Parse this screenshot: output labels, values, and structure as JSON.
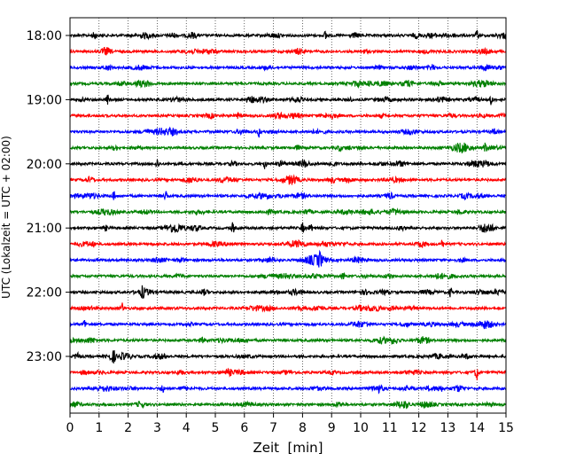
{
  "chart_data": {
    "type": "line",
    "subtype": "helicorder",
    "xlabel": "Zeit  [min]",
    "ylabel": "UTC (Lokalzeit = UTC + 02:00)",
    "xlim": [
      0,
      15
    ],
    "x_ticks": [
      "0",
      "1",
      "2",
      "3",
      "4",
      "5",
      "6",
      "7",
      "8",
      "9",
      "10",
      "11",
      "12",
      "13",
      "14",
      "15"
    ],
    "y_tick_labels": [
      "18:00",
      "19:00",
      "20:00",
      "21:00",
      "22:00",
      "23:00"
    ],
    "trace_interval_min": 15,
    "first_trace_utc": "18:00",
    "trace_count": 24,
    "trace_color_cycle": [
      "#000000",
      "#ff0000",
      "#0000ff",
      "#008000"
    ],
    "vertical_grid": "dotted, every 1 min",
    "notable_spikes": [
      {
        "trace": 0,
        "t_min": 0.85
      },
      {
        "trace": 0,
        "t_min": 8.8
      },
      {
        "trace": 0,
        "t_min": 14.0
      },
      {
        "trace": 3,
        "t_min": 10.3
      },
      {
        "trace": 4,
        "t_min": 1.3
      },
      {
        "trace": 4,
        "t_min": 14.5
      },
      {
        "trace": 6,
        "t_min": 6.5
      },
      {
        "trace": 7,
        "t_min": 14.3
      },
      {
        "trace": 8,
        "t_min": 3.0
      },
      {
        "trace": 8,
        "t_min": 6.7
      },
      {
        "trace": 10,
        "t_min": 1.5
      },
      {
        "trace": 10,
        "t_min": 3.3
      },
      {
        "trace": 12,
        "t_min": 5.6
      },
      {
        "trace": 12,
        "t_min": 8.0
      },
      {
        "trace": 13,
        "t_min": 12.8
      },
      {
        "trace": 14,
        "t_min": 8.6
      },
      {
        "trace": 15,
        "t_min": 9.4
      },
      {
        "trace": 16,
        "t_min": 2.5
      },
      {
        "trace": 16,
        "t_min": 13.1
      },
      {
        "trace": 17,
        "t_min": 1.8
      },
      {
        "trace": 18,
        "t_min": 0.5
      },
      {
        "trace": 20,
        "t_min": 1.5
      },
      {
        "trace": 21,
        "t_min": 14.0
      },
      {
        "trace": 22,
        "t_min": 3.2
      },
      {
        "trace": 22,
        "t_min": 12.3
      }
    ]
  }
}
